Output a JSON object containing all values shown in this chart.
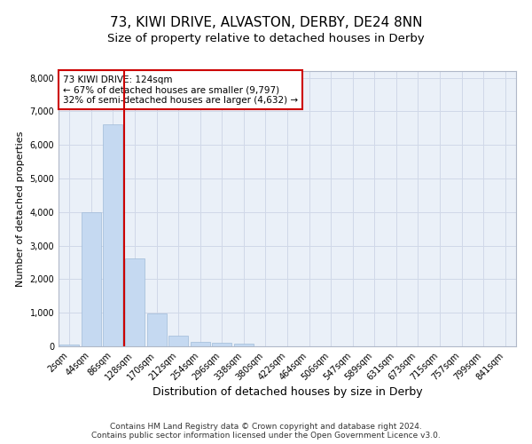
{
  "title": "73, KIWI DRIVE, ALVASTON, DERBY, DE24 8NN",
  "subtitle": "Size of property relative to detached houses in Derby",
  "xlabel": "Distribution of detached houses by size in Derby",
  "ylabel": "Number of detached properties",
  "categories": [
    "2sqm",
    "44sqm",
    "86sqm",
    "128sqm",
    "170sqm",
    "212sqm",
    "254sqm",
    "296sqm",
    "338sqm",
    "380sqm",
    "422sqm",
    "464sqm",
    "506sqm",
    "547sqm",
    "589sqm",
    "631sqm",
    "673sqm",
    "715sqm",
    "757sqm",
    "799sqm",
    "841sqm"
  ],
  "values": [
    60,
    4000,
    6600,
    2620,
    970,
    310,
    130,
    100,
    90,
    0,
    0,
    0,
    0,
    0,
    0,
    0,
    0,
    0,
    0,
    0,
    0
  ],
  "bar_color": "#c5d9f1",
  "bar_edgecolor": "#a0bbd8",
  "vline_x_idx": 2.5,
  "vline_color": "#cc0000",
  "annotation_text": "73 KIWI DRIVE: 124sqm\n← 67% of detached houses are smaller (9,797)\n32% of semi-detached houses are larger (4,632) →",
  "annotation_box_edgecolor": "#cc0000",
  "ylim": [
    0,
    8200
  ],
  "yticks": [
    0,
    1000,
    2000,
    3000,
    4000,
    5000,
    6000,
    7000,
    8000
  ],
  "grid_color": "#d0d8e8",
  "background_color": "#eaf0f8",
  "footer_line1": "Contains HM Land Registry data © Crown copyright and database right 2024.",
  "footer_line2": "Contains public sector information licensed under the Open Government Licence v3.0.",
  "title_fontsize": 11,
  "subtitle_fontsize": 9.5,
  "xlabel_fontsize": 9,
  "ylabel_fontsize": 8,
  "tick_fontsize": 7,
  "footer_fontsize": 6.5
}
